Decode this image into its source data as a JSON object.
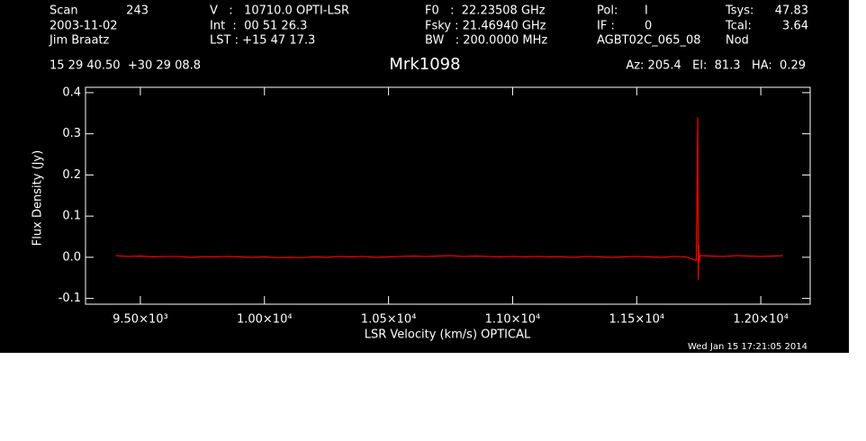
{
  "chart_data": {
    "type": "line",
    "title": "Mrk1098",
    "header": [
      "Scan",
      "243",
      "2003-11-02",
      "Jim Braatz",
      "15 29 40.50  +30 29 08.8",
      "V   :   10710.0 OPTI-LSR",
      "Int  :  00 51 26.3",
      "LST : +15 47 17.3",
      "F0   :  22.23508 GHz",
      "Fsky : 21.46940 GHz",
      "BW   : 200.0000 MHz",
      "Pol:",
      "I",
      "IF :",
      "0",
      "AGBT02C_065_08",
      "Tsys:",
      "47.83",
      "Tcal:",
      "3.64",
      "Nod",
      "Az: 205.4   El:  81.3   HA:  0.29"
    ],
    "footer": "Wed Jan 15 17:21:05 2014",
    "x_label": "LSR Velocity (km/s) OPTICAL",
    "y_label": "Flux Density (Jy)",
    "x": [
      9400,
      9450,
      9500,
      9550,
      9600,
      9650,
      9700,
      9750,
      9800,
      9850,
      9900,
      9950,
      10000,
      10050,
      10100,
      10150,
      10200,
      10250,
      10300,
      10350,
      10400,
      10450,
      10500,
      10550,
      10600,
      10650,
      10700,
      10750,
      10800,
      10850,
      10900,
      10950,
      11000,
      11050,
      11100,
      11150,
      11200,
      11250,
      11300,
      11350,
      11400,
      11450,
      11500,
      11550,
      11600,
      11650,
      11700,
      11740,
      11746,
      11748,
      11750,
      11752,
      11756,
      11800,
      11850,
      11900,
      11950,
      12000,
      12050,
      12090
    ],
    "series": [
      {
        "name": "Mrk1098",
        "color": "#ff0000",
        "values": [
          0.004,
          0.002,
          0.003,
          0.001,
          0.002,
          0.002,
          0.0,
          0.001,
          0.001,
          0.002,
          0.001,
          0.0,
          0.001,
          -0.001,
          0.0,
          -0.001,
          0.001,
          0.0,
          0.002,
          0.001,
          0.002,
          0.0,
          0.001,
          0.002,
          0.003,
          0.002,
          0.003,
          0.004,
          0.002,
          0.003,
          0.002,
          0.001,
          0.002,
          0.001,
          0.002,
          0.001,
          0.001,
          0.0,
          0.002,
          0.001,
          0.0,
          0.001,
          0.002,
          0.001,
          0.0,
          0.002,
          0.001,
          -0.008,
          0.34,
          -0.055,
          0.03,
          -0.01,
          0.004,
          0.003,
          0.002,
          0.004,
          0.003,
          0.002,
          0.003,
          0.004
        ]
      }
    ],
    "xlim": [
      9279,
      12199
    ],
    "ylim": [
      -0.114,
      0.413
    ],
    "xticks": [
      {
        "value": 9500,
        "label": "9.50×10³"
      },
      {
        "value": 10000,
        "label": "1.00×10⁴"
      },
      {
        "value": 10500,
        "label": "1.05×10⁴"
      },
      {
        "value": 11000,
        "label": "1.10×10⁴"
      },
      {
        "value": 11500,
        "label": "1.15×10⁴"
      },
      {
        "value": 12000,
        "label": "1.20×10⁴"
      }
    ],
    "yticks": [
      -0.1,
      {
        "value": 0,
        "label": "0.0"
      },
      0.1,
      0.2,
      0.3,
      0.4
    ]
  }
}
